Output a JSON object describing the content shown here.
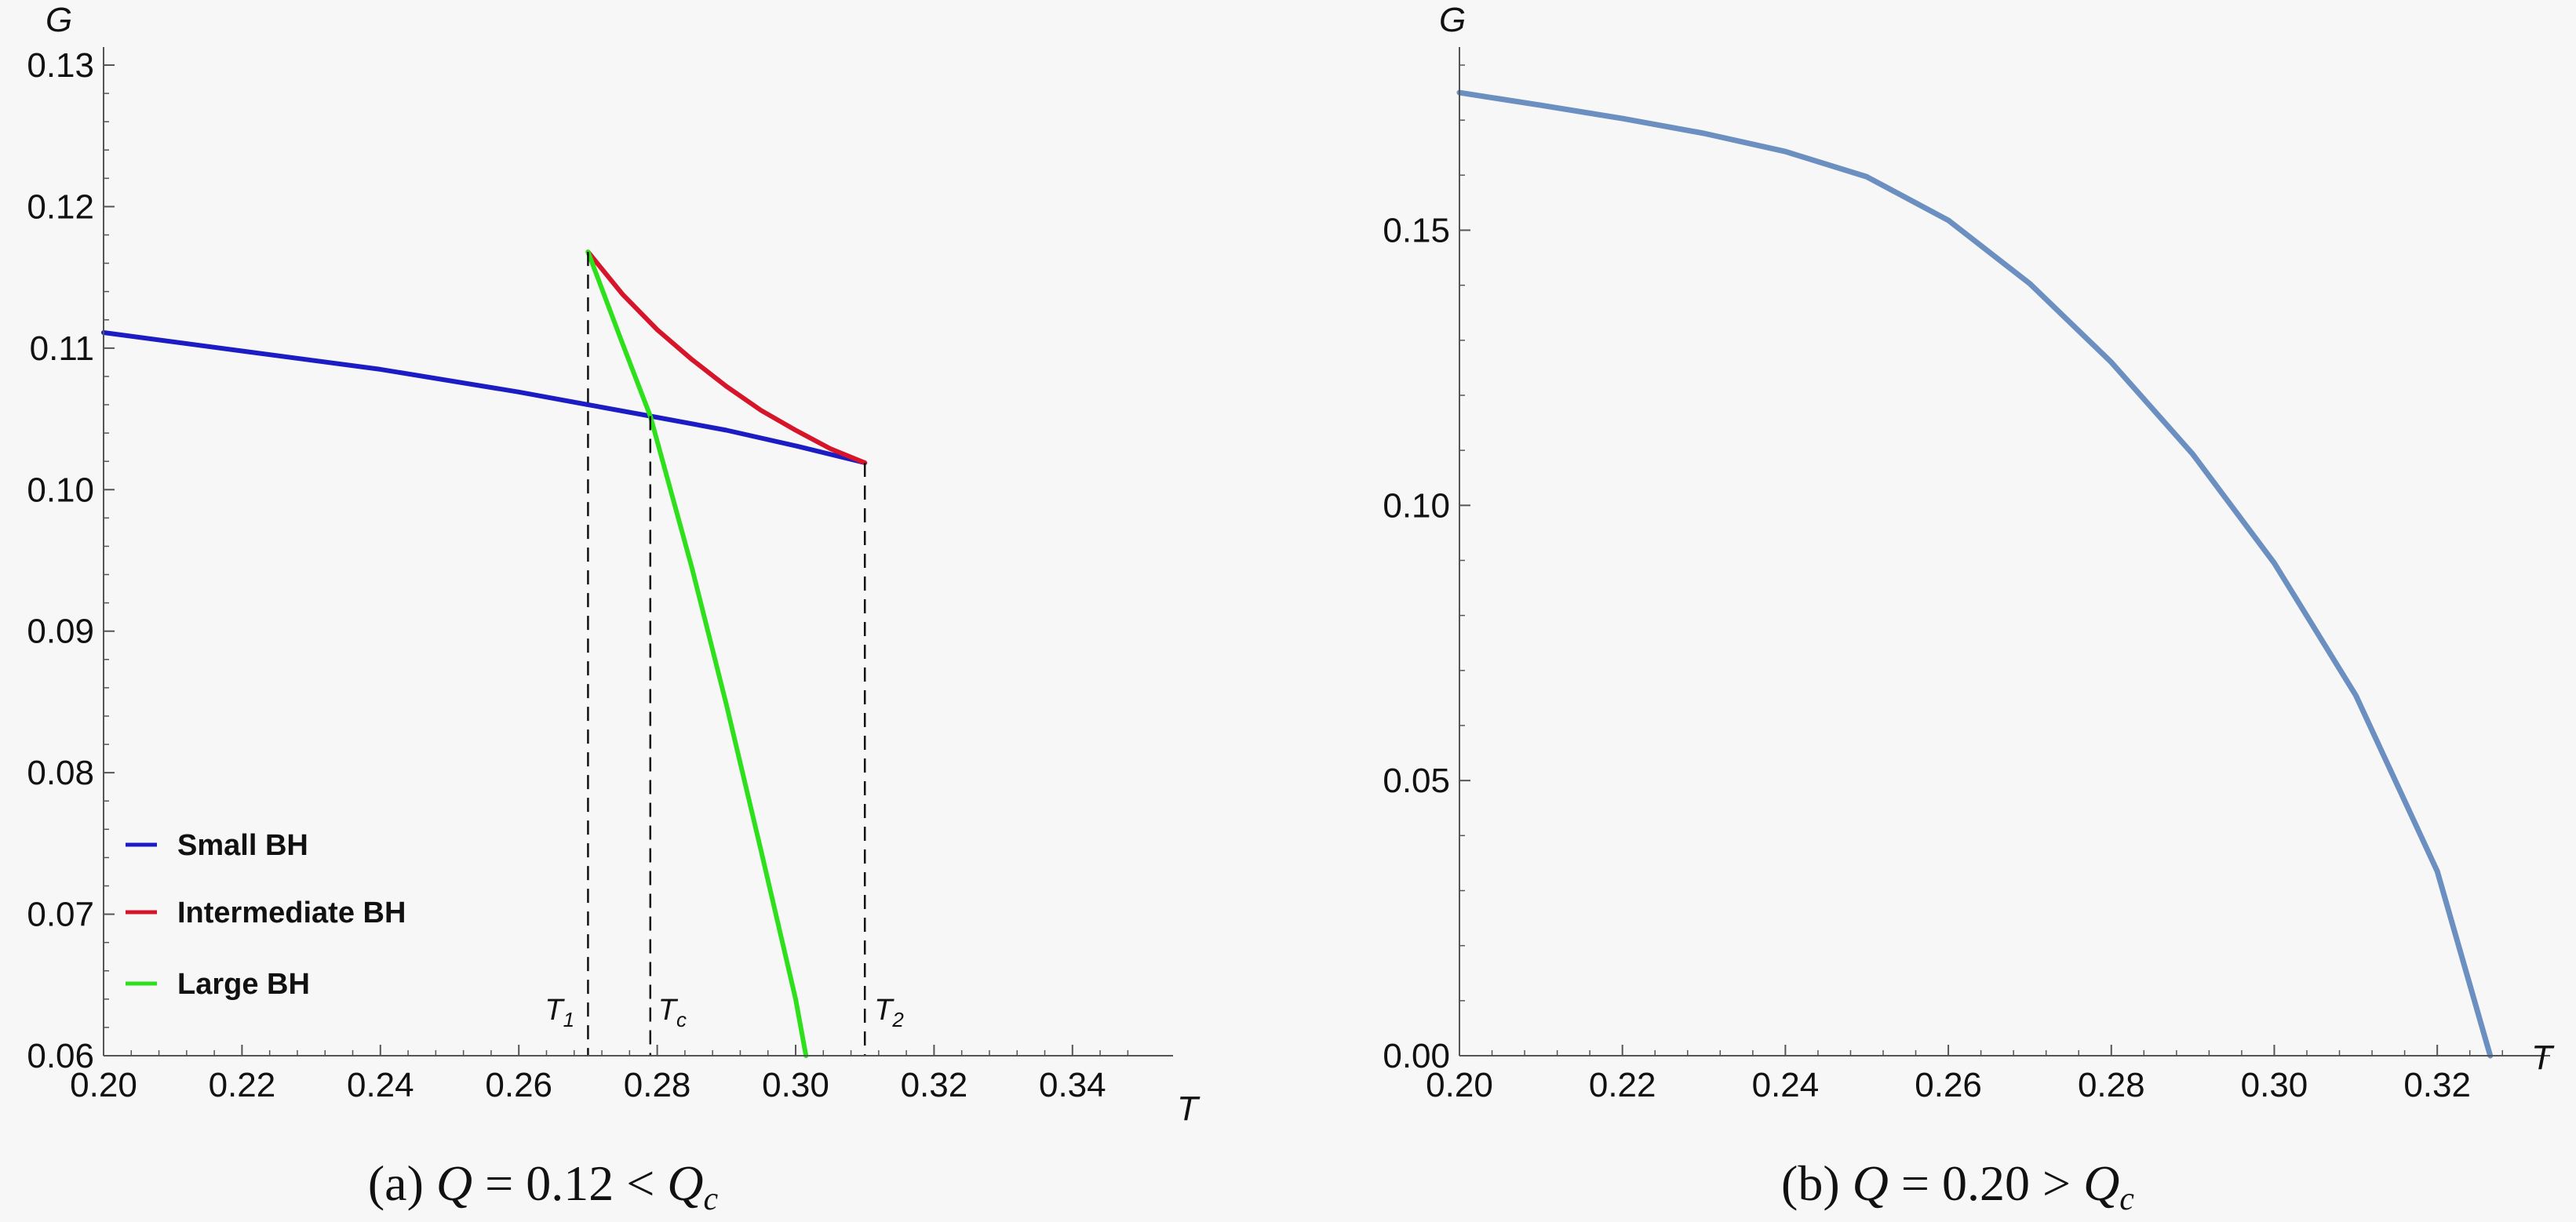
{
  "colors": {
    "background": "#f7f7f7",
    "axis": "#555555",
    "small_bh": "#1c1cc4",
    "intermediate_bh": "#d6152b",
    "large_bh": "#2de01b",
    "combined_curve": "#6a8fc0",
    "guide": "#111111"
  },
  "chart_data": [
    {
      "type": "line",
      "panel": "a",
      "xlabel": "T",
      "ylabel": "G",
      "xlim": [
        0.2,
        0.35
      ],
      "ylim": [
        0.06,
        0.13
      ],
      "x_ticks": [
        "0.20",
        "0.22",
        "0.24",
        "0.26",
        "0.28",
        "0.30",
        "0.32",
        "0.34"
      ],
      "y_ticks": [
        "0.06",
        "0.07",
        "0.08",
        "0.09",
        "0.10",
        "0.11",
        "0.12",
        "0.13"
      ],
      "grid": false,
      "legend_position": "bottom-left",
      "series": [
        {
          "name": "Small BH",
          "color": "#1c1cc4",
          "points": [
            [
              0.2,
              0.1111
            ],
            [
              0.22,
              0.1098
            ],
            [
              0.24,
              0.1085
            ],
            [
              0.26,
              0.1069
            ],
            [
              0.27,
              0.106
            ],
            [
              0.279,
              0.1052
            ],
            [
              0.29,
              0.1042
            ],
            [
              0.3,
              0.1031
            ],
            [
              0.31,
              0.1019
            ]
          ]
        },
        {
          "name": "Intermediate BH",
          "color": "#d6152b",
          "points": [
            [
              0.27,
              0.1168
            ],
            [
              0.275,
              0.1138
            ],
            [
              0.28,
              0.1113
            ],
            [
              0.285,
              0.1092
            ],
            [
              0.29,
              0.1073
            ],
            [
              0.295,
              0.1056
            ],
            [
              0.3,
              0.1042
            ],
            [
              0.305,
              0.1029
            ],
            [
              0.31,
              0.1019
            ]
          ]
        },
        {
          "name": "Large BH",
          "color": "#2de01b",
          "points": [
            [
              0.27,
              0.1168
            ],
            [
              0.275,
              0.1103
            ],
            [
              0.279,
              0.1052
            ],
            [
              0.285,
              0.0945
            ],
            [
              0.29,
              0.0848
            ],
            [
              0.295,
              0.0745
            ],
            [
              0.3,
              0.064
            ],
            [
              0.3015,
              0.06
            ]
          ]
        }
      ],
      "markers": [
        {
          "label": "T",
          "sub": "1",
          "x": 0.27,
          "y_top": 0.1168
        },
        {
          "label": "T",
          "sub": "c",
          "x": 0.279,
          "y_top": 0.1052
        },
        {
          "label": "T",
          "sub": "2",
          "x": 0.31,
          "y_top": 0.1019
        }
      ],
      "caption": {
        "prefix": "(a) ",
        "var": "Q",
        "rest": " = 0.12 < ",
        "var2": "Q",
        "sub": "c"
      }
    },
    {
      "type": "line",
      "panel": "b",
      "xlabel": "T",
      "ylabel": "G",
      "xlim": [
        0.2,
        0.33
      ],
      "ylim": [
        0.0,
        0.18
      ],
      "x_ticks": [
        "0.20",
        "0.22",
        "0.24",
        "0.26",
        "0.28",
        "0.30",
        "0.32"
      ],
      "y_ticks": [
        "0.00",
        "0.05",
        "0.10",
        "0.15"
      ],
      "grid": false,
      "series": [
        {
          "color": "#6a8fc0",
          "points": [
            [
              0.2,
              0.175
            ],
            [
              0.21,
              0.1727
            ],
            [
              0.22,
              0.1703
            ],
            [
              0.23,
              0.1676
            ],
            [
              0.24,
              0.1643
            ],
            [
              0.25,
              0.1597
            ],
            [
              0.26,
              0.1518
            ],
            [
              0.27,
              0.1403
            ],
            [
              0.28,
              0.126
            ],
            [
              0.29,
              0.1093
            ],
            [
              0.3,
              0.0895
            ],
            [
              0.31,
              0.0655
            ],
            [
              0.32,
              0.0335
            ],
            [
              0.3265,
              0.0
            ]
          ]
        }
      ],
      "caption": {
        "prefix": "(b) ",
        "var": "Q",
        "rest": " = 0.20 > ",
        "var2": "Q",
        "sub": "c"
      }
    }
  ]
}
